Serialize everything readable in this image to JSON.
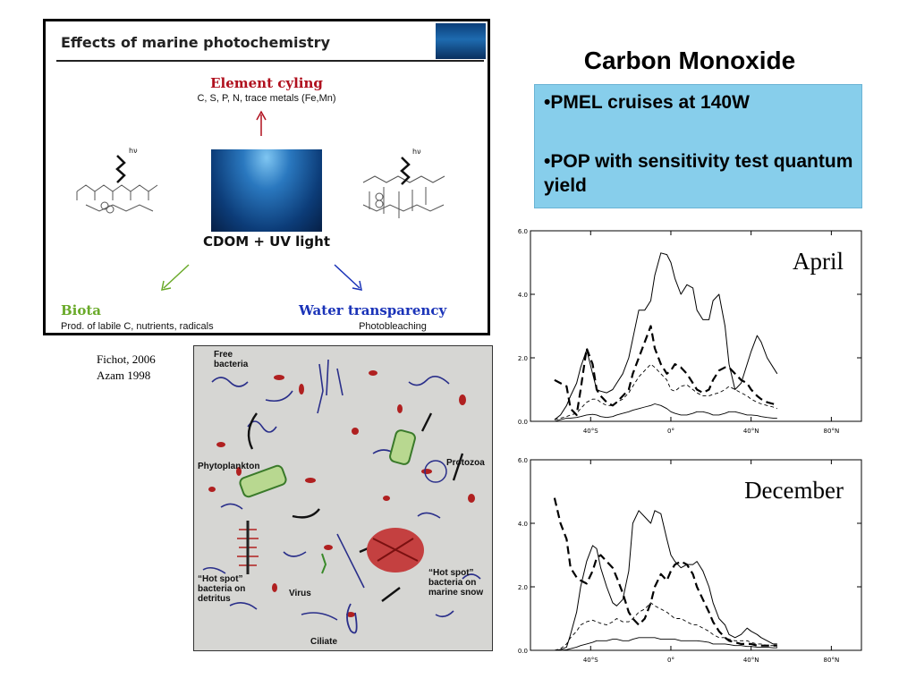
{
  "inset": {
    "title": "Effects of marine photochemistry",
    "element_cycling": "Element cyling",
    "element_cycling_sub": "C, S, P, N, trace metals (Fe,Mn)",
    "center": "CDOM + UV light",
    "biota": "Biota",
    "biota_sub": "Prod. of labile C, nutrients, radicals",
    "water": "Water transparency",
    "water_sub": "Photobleaching",
    "hv1": "hν",
    "hv2": "hν",
    "colors": {
      "element": "#b0101e",
      "biota": "#6aaa2a",
      "water": "#1a33b8"
    }
  },
  "citation": {
    "line1": "Fichot, 2006",
    "line2": "Azam 1998"
  },
  "micro": {
    "free_bacteria": [
      "Free",
      "bacteria"
    ],
    "phytoplankton": "Phytoplankton",
    "protozoa": "Protozoa",
    "hotspot1": [
      "“Hot spot”",
      "bacteria on",
      "detritus"
    ],
    "virus": "Virus",
    "hotspot2": [
      "“Hot spot”",
      "bacteria on",
      "marine snow"
    ],
    "ciliate": "Ciliate"
  },
  "heading": "Carbon Monoxide",
  "bullets": [
    "•PMEL cruises at 140W",
    "•POP with sensitivity test quantum yield"
  ],
  "chart_data": [
    {
      "type": "line",
      "title": "April",
      "x": [
        -58,
        -55,
        -52,
        -50,
        -47,
        -45,
        -42,
        -39,
        -37,
        -35,
        -32,
        -29,
        -27,
        -24,
        -21,
        -19,
        -16,
        -13,
        -10,
        -8,
        -5,
        -2,
        0,
        2,
        5,
        8,
        11,
        13,
        16,
        19,
        21,
        24,
        27,
        29,
        32,
        35,
        38,
        40,
        43,
        45,
        48,
        51,
        53
      ],
      "xticks": [
        "40°S",
        "0°",
        "40°N",
        "80°N"
      ],
      "xtick_values": [
        -40,
        0,
        40,
        80
      ],
      "xlim": [
        -70,
        95
      ],
      "yticks": [
        "0.0",
        "2.0",
        "4.0",
        "6.0"
      ],
      "ylim": [
        0,
        6
      ],
      "series": [
        {
          "style": "solid",
          "values": [
            0.05,
            0.2,
            0.5,
            0.8,
            1.2,
            1.7,
            2.25,
            1.5,
            1.0,
            0.95,
            0.9,
            1.0,
            1.2,
            1.5,
            2.0,
            2.6,
            3.5,
            3.5,
            3.8,
            4.6,
            5.3,
            5.25,
            5.0,
            4.5,
            4.0,
            4.3,
            4.2,
            3.5,
            3.2,
            3.2,
            3.8,
            4.0,
            3.0,
            1.8,
            1.0,
            1.2,
            1.8,
            2.2,
            2.7,
            2.5,
            2.0,
            1.7,
            1.5
          ]
        },
        {
          "style": "heavy-dashed",
          "values": [
            1.3,
            1.2,
            1.1,
            0.4,
            0.2,
            1.0,
            2.3,
            1.8,
            1.0,
            0.8,
            0.6,
            0.5,
            0.6,
            0.8,
            1.0,
            1.5,
            2.0,
            2.5,
            3.0,
            2.3,
            1.8,
            1.5,
            1.6,
            1.8,
            1.7,
            1.5,
            1.2,
            1.0,
            0.9,
            1.0,
            1.3,
            1.6,
            1.7,
            1.7,
            1.5,
            1.3,
            1.2,
            1.0,
            0.8,
            0.7,
            0.6,
            0.55,
            0.5
          ]
        },
        {
          "style": "thin-dashed",
          "values": [
            0.05,
            0.1,
            0.15,
            0.2,
            0.25,
            0.4,
            0.6,
            0.7,
            0.7,
            0.6,
            0.5,
            0.5,
            0.6,
            0.7,
            0.9,
            1.1,
            1.4,
            1.6,
            1.8,
            1.7,
            1.5,
            1.3,
            1.0,
            0.95,
            1.1,
            1.15,
            1.0,
            0.9,
            0.8,
            0.8,
            0.85,
            0.9,
            1.0,
            1.1,
            1.0,
            0.9,
            0.8,
            0.7,
            0.6,
            0.55,
            0.5,
            0.45,
            0.4
          ]
        },
        {
          "style": "thin-solid",
          "values": [
            0.0,
            0.05,
            0.1,
            0.1,
            0.12,
            0.15,
            0.2,
            0.22,
            0.2,
            0.15,
            0.12,
            0.15,
            0.2,
            0.25,
            0.3,
            0.35,
            0.4,
            0.45,
            0.5,
            0.55,
            0.5,
            0.4,
            0.3,
            0.25,
            0.2,
            0.2,
            0.25,
            0.3,
            0.3,
            0.25,
            0.2,
            0.2,
            0.25,
            0.3,
            0.3,
            0.25,
            0.2,
            0.2,
            0.18,
            0.15,
            0.12,
            0.1,
            0.1
          ]
        }
      ]
    },
    {
      "type": "line",
      "title": "December",
      "x": [
        -58,
        -55,
        -52,
        -50,
        -47,
        -45,
        -42,
        -39,
        -37,
        -35,
        -32,
        -29,
        -27,
        -24,
        -21,
        -19,
        -16,
        -13,
        -10,
        -8,
        -5,
        -2,
        0,
        2,
        5,
        8,
        11,
        13,
        16,
        19,
        21,
        24,
        27,
        29,
        32,
        35,
        38,
        40,
        43,
        45,
        48,
        51,
        53
      ],
      "xticks": [
        "40°S",
        "0°",
        "40°N",
        "80°N"
      ],
      "xtick_values": [
        -40,
        0,
        40,
        80
      ],
      "xlim": [
        -70,
        95
      ],
      "yticks": [
        "0.0",
        "2.0",
        "4.0",
        "6.0"
      ],
      "ylim": [
        0,
        6
      ],
      "series": [
        {
          "style": "solid",
          "values": [
            0.0,
            0.02,
            0.1,
            0.5,
            1.2,
            2.0,
            2.8,
            3.3,
            3.2,
            2.6,
            2.0,
            1.5,
            1.4,
            1.6,
            2.5,
            4.0,
            4.4,
            4.2,
            4.0,
            4.4,
            4.3,
            3.5,
            3.0,
            2.8,
            2.6,
            2.7,
            2.7,
            2.8,
            2.5,
            2.0,
            1.5,
            1.0,
            0.8,
            0.5,
            0.4,
            0.5,
            0.7,
            0.6,
            0.5,
            0.4,
            0.3,
            0.2,
            0.2
          ]
        },
        {
          "style": "heavy-dashed",
          "values": [
            4.8,
            4.0,
            3.5,
            2.6,
            2.3,
            2.2,
            2.1,
            2.5,
            2.9,
            3.0,
            2.8,
            2.6,
            2.3,
            1.8,
            1.2,
            1.0,
            0.8,
            1.0,
            1.5,
            2.0,
            2.4,
            2.2,
            2.5,
            2.7,
            2.8,
            2.7,
            2.4,
            2.0,
            1.6,
            1.2,
            0.9,
            0.6,
            0.4,
            0.3,
            0.25,
            0.2,
            0.2,
            0.2,
            0.15,
            0.15,
            0.15,
            0.15,
            0.15
          ]
        },
        {
          "style": "thin-dashed",
          "values": [
            0.0,
            0.05,
            0.2,
            0.4,
            0.6,
            0.8,
            0.9,
            0.95,
            0.9,
            0.85,
            0.8,
            0.9,
            1.0,
            0.9,
            0.9,
            1.0,
            1.2,
            1.3,
            1.5,
            1.4,
            1.3,
            1.2,
            1.1,
            1.0,
            1.0,
            0.9,
            0.8,
            0.8,
            0.7,
            0.6,
            0.5,
            0.4,
            0.4,
            0.35,
            0.3,
            0.3,
            0.3,
            0.25,
            0.2,
            0.2,
            0.15,
            0.15,
            0.1
          ]
        },
        {
          "style": "thin-solid",
          "values": [
            0.0,
            0.0,
            0.02,
            0.05,
            0.1,
            0.15,
            0.2,
            0.25,
            0.3,
            0.3,
            0.3,
            0.35,
            0.35,
            0.3,
            0.3,
            0.35,
            0.4,
            0.4,
            0.4,
            0.4,
            0.35,
            0.35,
            0.35,
            0.35,
            0.3,
            0.3,
            0.3,
            0.3,
            0.28,
            0.25,
            0.2,
            0.2,
            0.2,
            0.18,
            0.15,
            0.15,
            0.12,
            0.12,
            0.1,
            0.1,
            0.1,
            0.08,
            0.08
          ]
        }
      ]
    }
  ]
}
